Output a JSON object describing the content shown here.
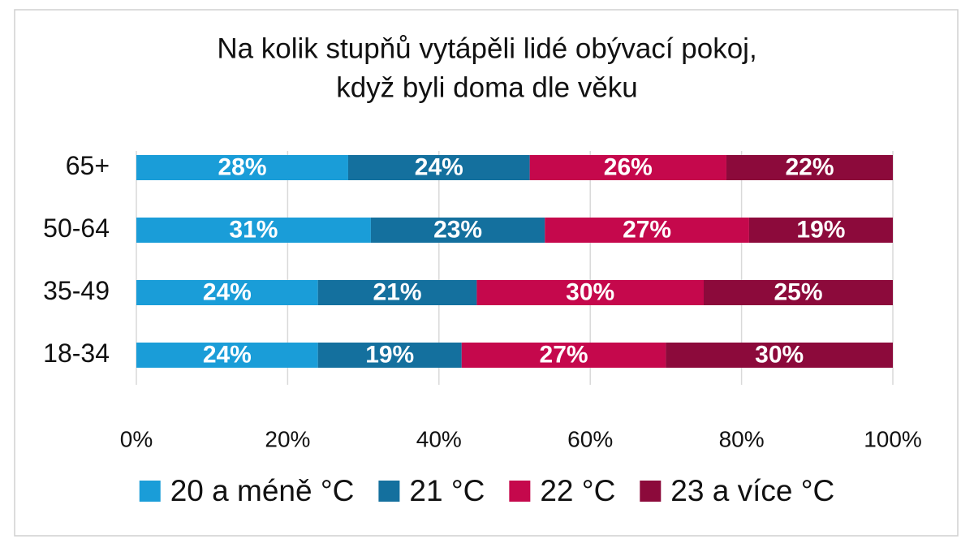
{
  "chart_data": {
    "type": "stacked-bar-horizontal",
    "title": [
      "Na kolik stupňů vytápěli lidé obývací pokoj,",
      "když byli doma dle věku"
    ],
    "categories": [
      "65+",
      "50-64",
      "35-49",
      "18-34"
    ],
    "series": [
      {
        "name": "20 a méně °C",
        "color": "#1a9dd8",
        "values": [
          28,
          31,
          24,
          24
        ],
        "value_labels": [
          "28%",
          "31%",
          "24%",
          "24%"
        ]
      },
      {
        "name": "21 °C",
        "color": "#14709e",
        "values": [
          24,
          23,
          21,
          19
        ],
        "value_labels": [
          "24%",
          "23%",
          "21%",
          "19%"
        ]
      },
      {
        "name": "22 °C",
        "color": "#c5084c",
        "values": [
          26,
          27,
          30,
          27
        ],
        "value_labels": [
          "26%",
          "27%",
          "30%",
          "27%"
        ]
      },
      {
        "name": "23 a více °C",
        "color": "#8c0a3b",
        "values": [
          22,
          19,
          25,
          30
        ],
        "value_labels": [
          "22%",
          "19%",
          "25%",
          "30%"
        ]
      }
    ],
    "xlim": [
      0,
      100
    ],
    "xticks": [
      {
        "value": 0,
        "label": "0%"
      },
      {
        "value": 20,
        "label": "20%"
      },
      {
        "value": 40,
        "label": "40%"
      },
      {
        "value": 60,
        "label": "60%"
      },
      {
        "value": 80,
        "label": "80%"
      },
      {
        "value": 100,
        "label": "100%"
      }
    ],
    "grid": true,
    "legend": "bottom"
  }
}
